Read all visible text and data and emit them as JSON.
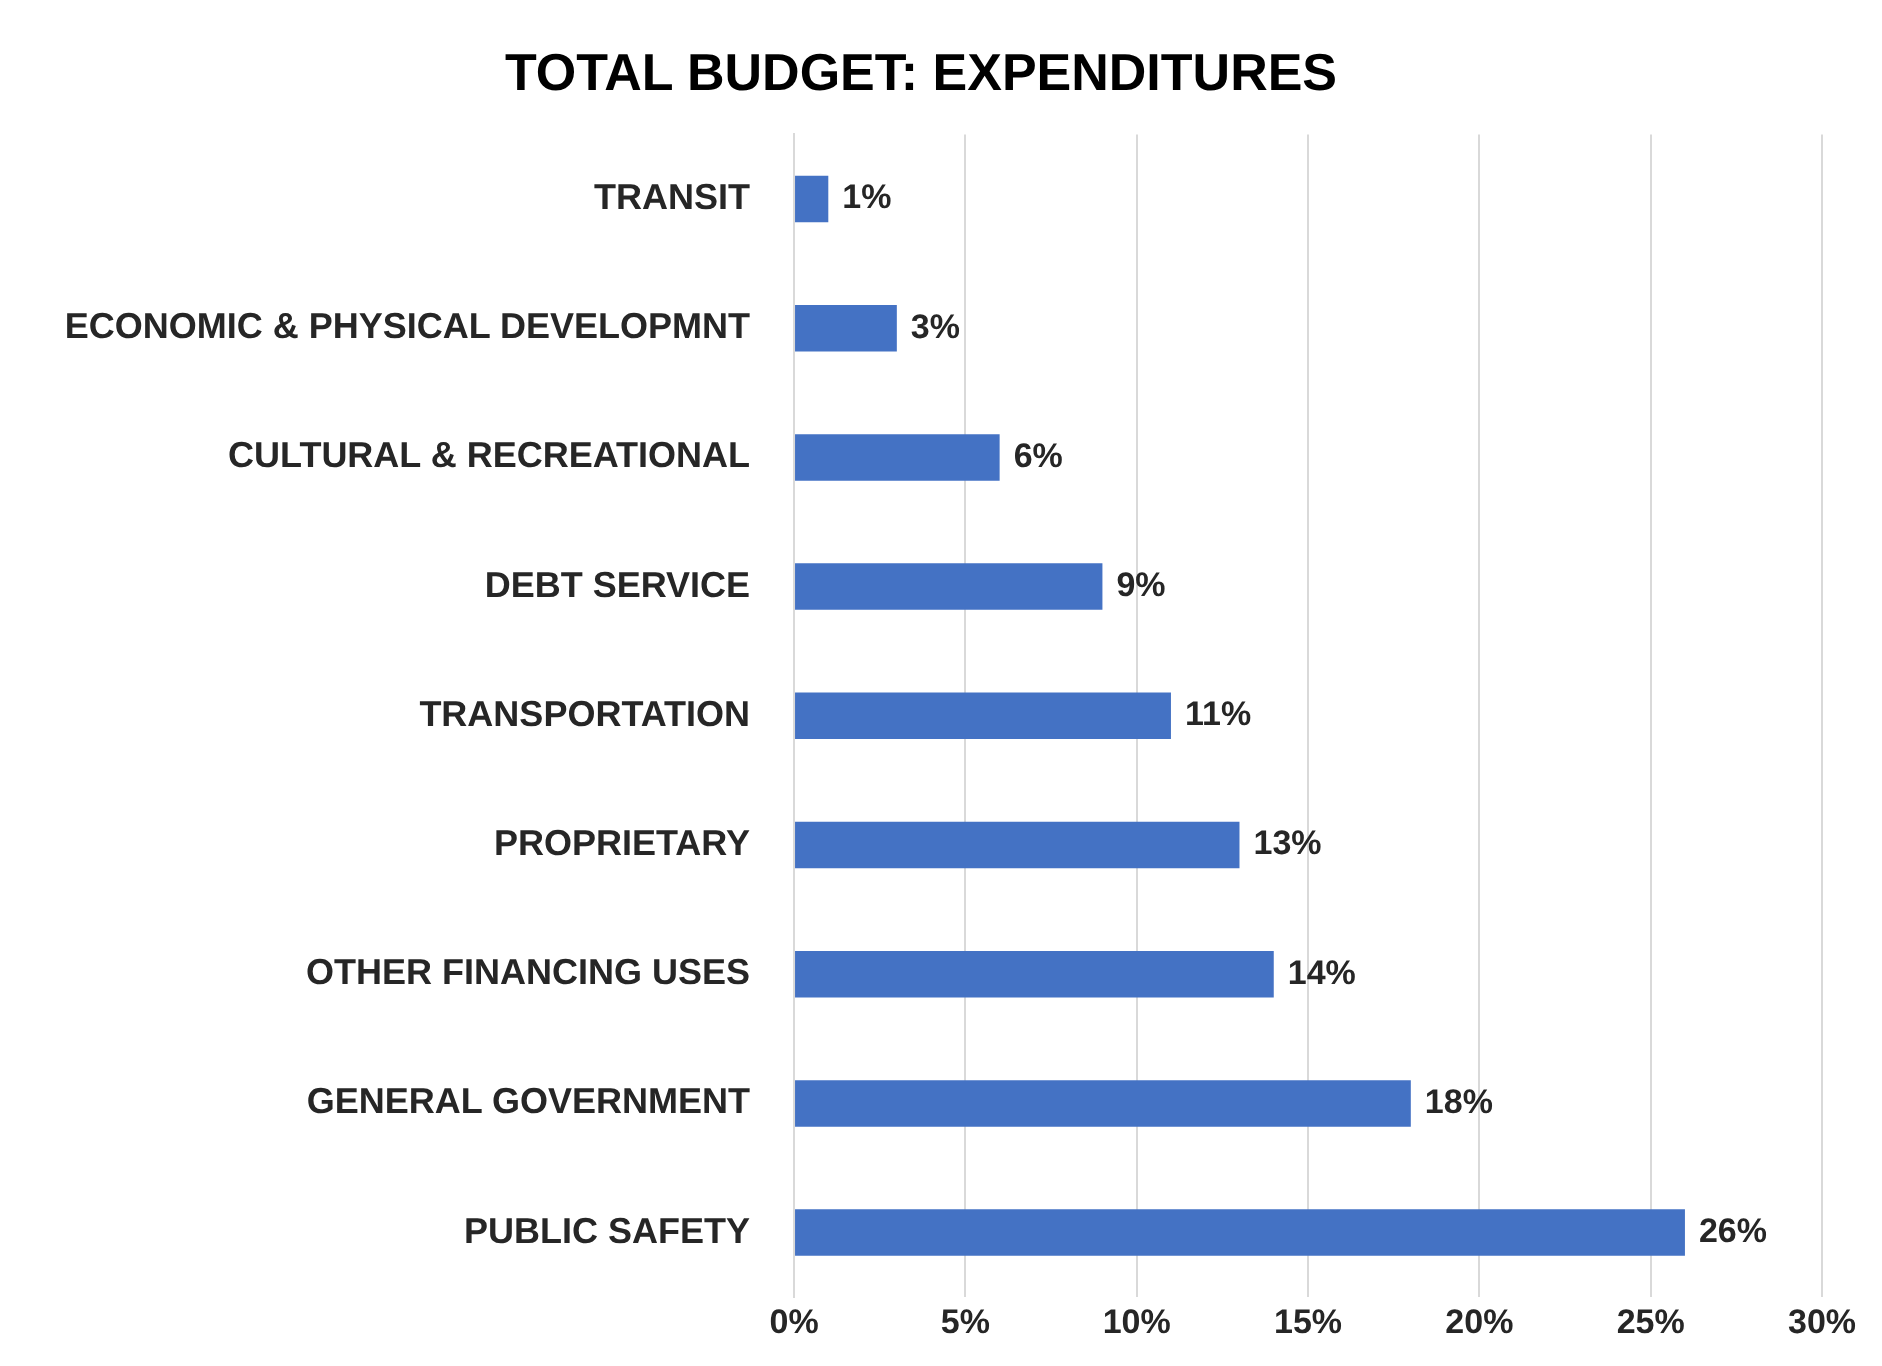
{
  "chart_data": {
    "type": "bar",
    "orientation": "horizontal",
    "title": "TOTAL BUDGET: EXPENDITURES",
    "categories": [
      "TRANSIT",
      "ECONOMIC & PHYSICAL DEVELOPMNT",
      "CULTURAL & RECREATIONAL",
      "DEBT SERVICE",
      "TRANSPORTATION",
      "PROPRIETARY",
      "OTHER FINANCING USES",
      "GENERAL GOVERNMENT",
      "PUBLIC SAFETY"
    ],
    "values": [
      1,
      3,
      6,
      9,
      11,
      13,
      14,
      18,
      26
    ],
    "value_labels": [
      "1%",
      "3%",
      "6%",
      "9%",
      "11%",
      "13%",
      "14%",
      "18%",
      "26%"
    ],
    "color": "#4472c4",
    "xlim": [
      0,
      30
    ],
    "xticks": [
      {
        "value": 0,
        "label": "0%"
      },
      {
        "value": 5,
        "label": "5%"
      },
      {
        "value": 10,
        "label": "10%"
      },
      {
        "value": 15,
        "label": "15%"
      },
      {
        "value": 20,
        "label": "20%"
      },
      {
        "value": 25,
        "label": "25%"
      },
      {
        "value": 30,
        "label": "30%"
      }
    ],
    "grid": "x",
    "legend": false
  }
}
